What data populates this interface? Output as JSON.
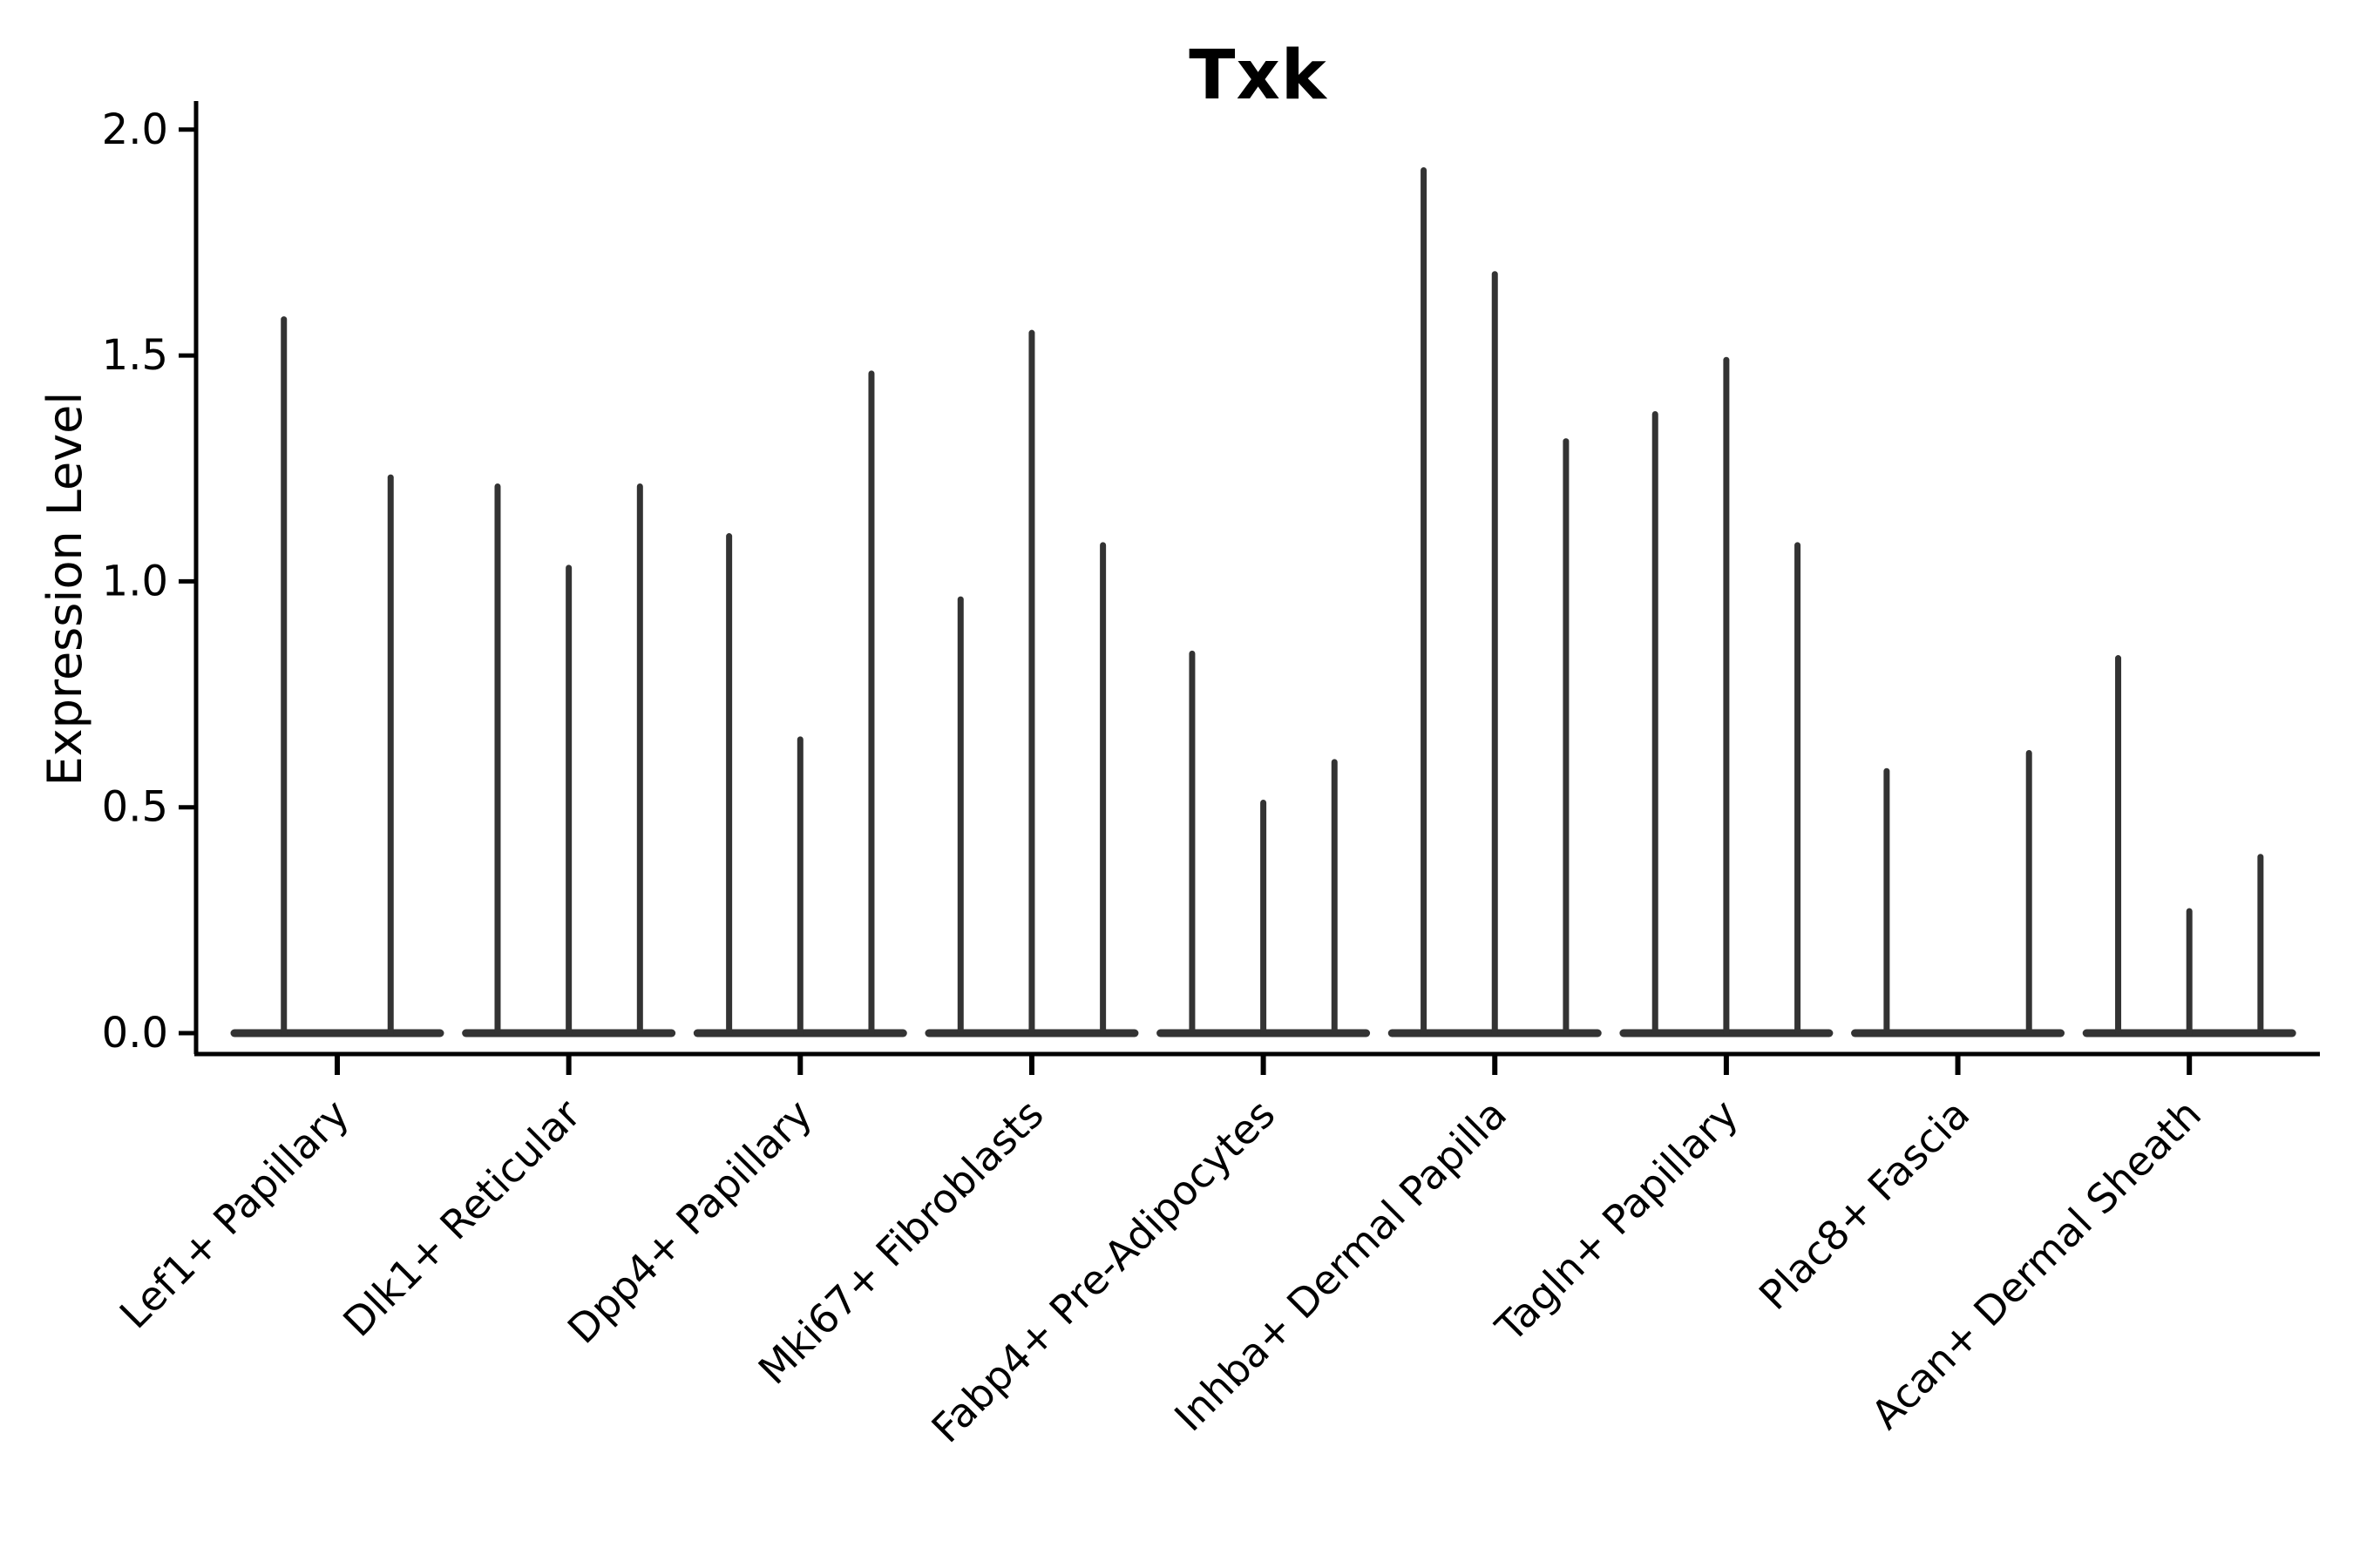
{
  "chart_data": {
    "type": "violin",
    "title": "Txk",
    "ylabel": "Expression Level",
    "xlabel": "",
    "ylim": [
      0,
      2
    ],
    "ytick_labels": [
      "0.0",
      "0.5",
      "1.0",
      "1.5",
      "2.0"
    ],
    "ytick_values": [
      0,
      0.5,
      1.0,
      1.5,
      2.0
    ],
    "grid": false,
    "legend_position": "none",
    "categories": [
      "Lef1+ Papillary",
      "Dlk1+ Reticular",
      "Dpp4+ Papillary",
      "Mki67+ Fibroblasts",
      "Fabp4+ Pre-Adipocytes",
      "Inhba+ Dermal Papilla",
      "Tagln+ Papillary",
      "Plac8+ Fascia",
      "Acan+ Dermal Sheath"
    ],
    "groups": [
      {
        "category": "Lef1+ Papillary",
        "violin_peaks": [
          1.58,
          1.23
        ]
      },
      {
        "category": "Dlk1+ Reticular",
        "violin_peaks": [
          1.21,
          1.03,
          1.21
        ]
      },
      {
        "category": "Dpp4+ Papillary",
        "violin_peaks": [
          1.1,
          0.65,
          1.46
        ]
      },
      {
        "category": "Mki67+ Fibroblasts",
        "violin_peaks": [
          0.96,
          1.55,
          1.08
        ]
      },
      {
        "category": "Fabp4+ Pre-Adipocytes",
        "violin_peaks": [
          0.84,
          0.51,
          0.6
        ]
      },
      {
        "category": "Inhba+ Dermal Papilla",
        "violin_peaks": [
          1.91,
          1.68,
          1.31
        ]
      },
      {
        "category": "Tagln+ Papillary",
        "violin_peaks": [
          1.37,
          1.49,
          1.08
        ]
      },
      {
        "category": "Plac8+ Fascia",
        "violin_peaks": [
          0.58,
          0.0,
          0.62
        ]
      },
      {
        "category": "Acan+ Dermal Sheath",
        "violin_peaks": [
          0.83,
          0.27,
          0.39
        ]
      }
    ]
  },
  "style": {
    "violin_ink": "#333333",
    "axis_color": "#000000",
    "background": "#ffffff"
  }
}
